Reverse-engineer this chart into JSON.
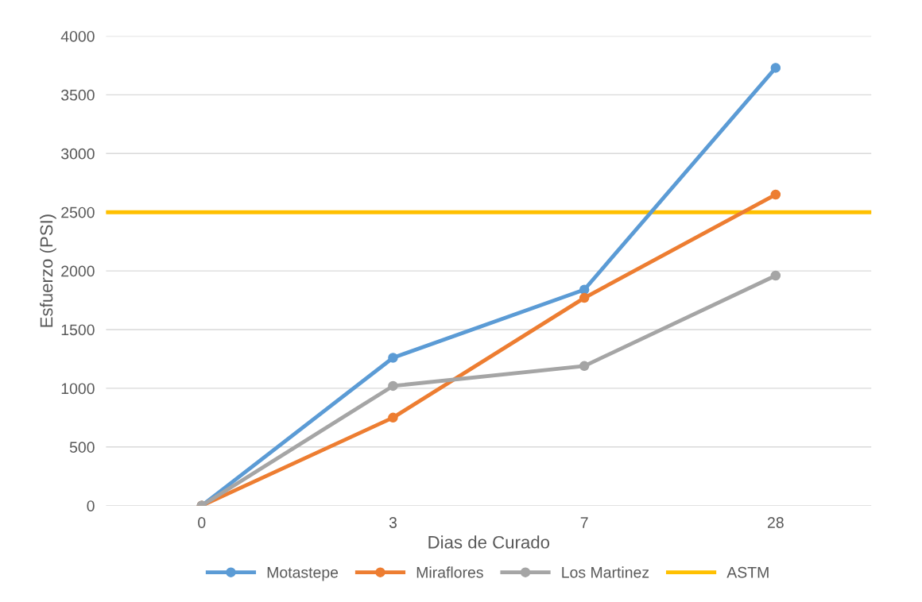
{
  "chart_data": {
    "type": "line",
    "xlabel": "Dias de Curado",
    "ylabel": "Esfuerzo (PSI)",
    "categories": [
      "0",
      "3",
      "7",
      "28"
    ],
    "series": [
      {
        "name": "Motastepe",
        "color": "#5b9bd5",
        "values": [
          0,
          1260,
          1840,
          3730
        ]
      },
      {
        "name": "Miraflores",
        "color": "#ed7d31",
        "values": [
          0,
          750,
          1770,
          2650
        ]
      },
      {
        "name": "Los Martinez",
        "color": "#a5a5a5",
        "values": [
          0,
          1020,
          1190,
          1960
        ]
      }
    ],
    "ref_lines": [
      {
        "axis": "y",
        "value": 2500,
        "label": "ASTM",
        "color": "#ffc000",
        "line_style": "solid"
      }
    ],
    "ylim": [
      0,
      4000
    ],
    "yticks": [
      0,
      500,
      1000,
      1500,
      2000,
      2500,
      3000,
      3500,
      4000
    ],
    "grid": "y",
    "legend": "bottom",
    "marker": "circle",
    "line_style": "solid"
  }
}
